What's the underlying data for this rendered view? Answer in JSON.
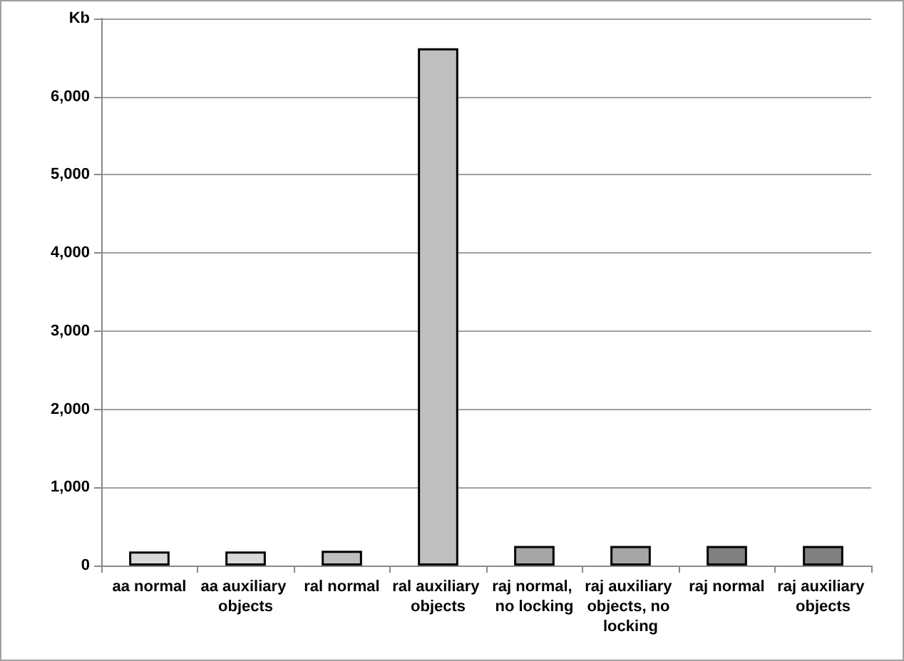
{
  "chart_data": {
    "type": "bar",
    "categories": [
      "aa normal",
      "aa auxiliary objects",
      "ral normal",
      "ral auxiliary objects",
      "raj normal, no locking",
      "raj auxiliary objects, no locking",
      "raj normal",
      "raj auxiliary objects"
    ],
    "values": [
      180,
      180,
      190,
      6620,
      250,
      250,
      250,
      250
    ],
    "colors": [
      "#d9d9d9",
      "#d9d9d9",
      "#bfbfbf",
      "#bfbfbf",
      "#a6a6a6",
      "#a6a6a6",
      "#808080",
      "#808080"
    ],
    "ylim": [
      0,
      7000
    ],
    "yticks": [
      0,
      {
        "value": 1000,
        "label": "1,000"
      },
      {
        "value": 2000,
        "label": "2,000"
      },
      {
        "value": 3000,
        "label": "3,000"
      },
      {
        "value": 4000,
        "label": "4,000"
      },
      {
        "value": 5000,
        "label": "5,000"
      },
      {
        "value": 6000,
        "label": "6,000"
      },
      {
        "value": 7000,
        "label": "Kb"
      }
    ],
    "grid": "y"
  }
}
